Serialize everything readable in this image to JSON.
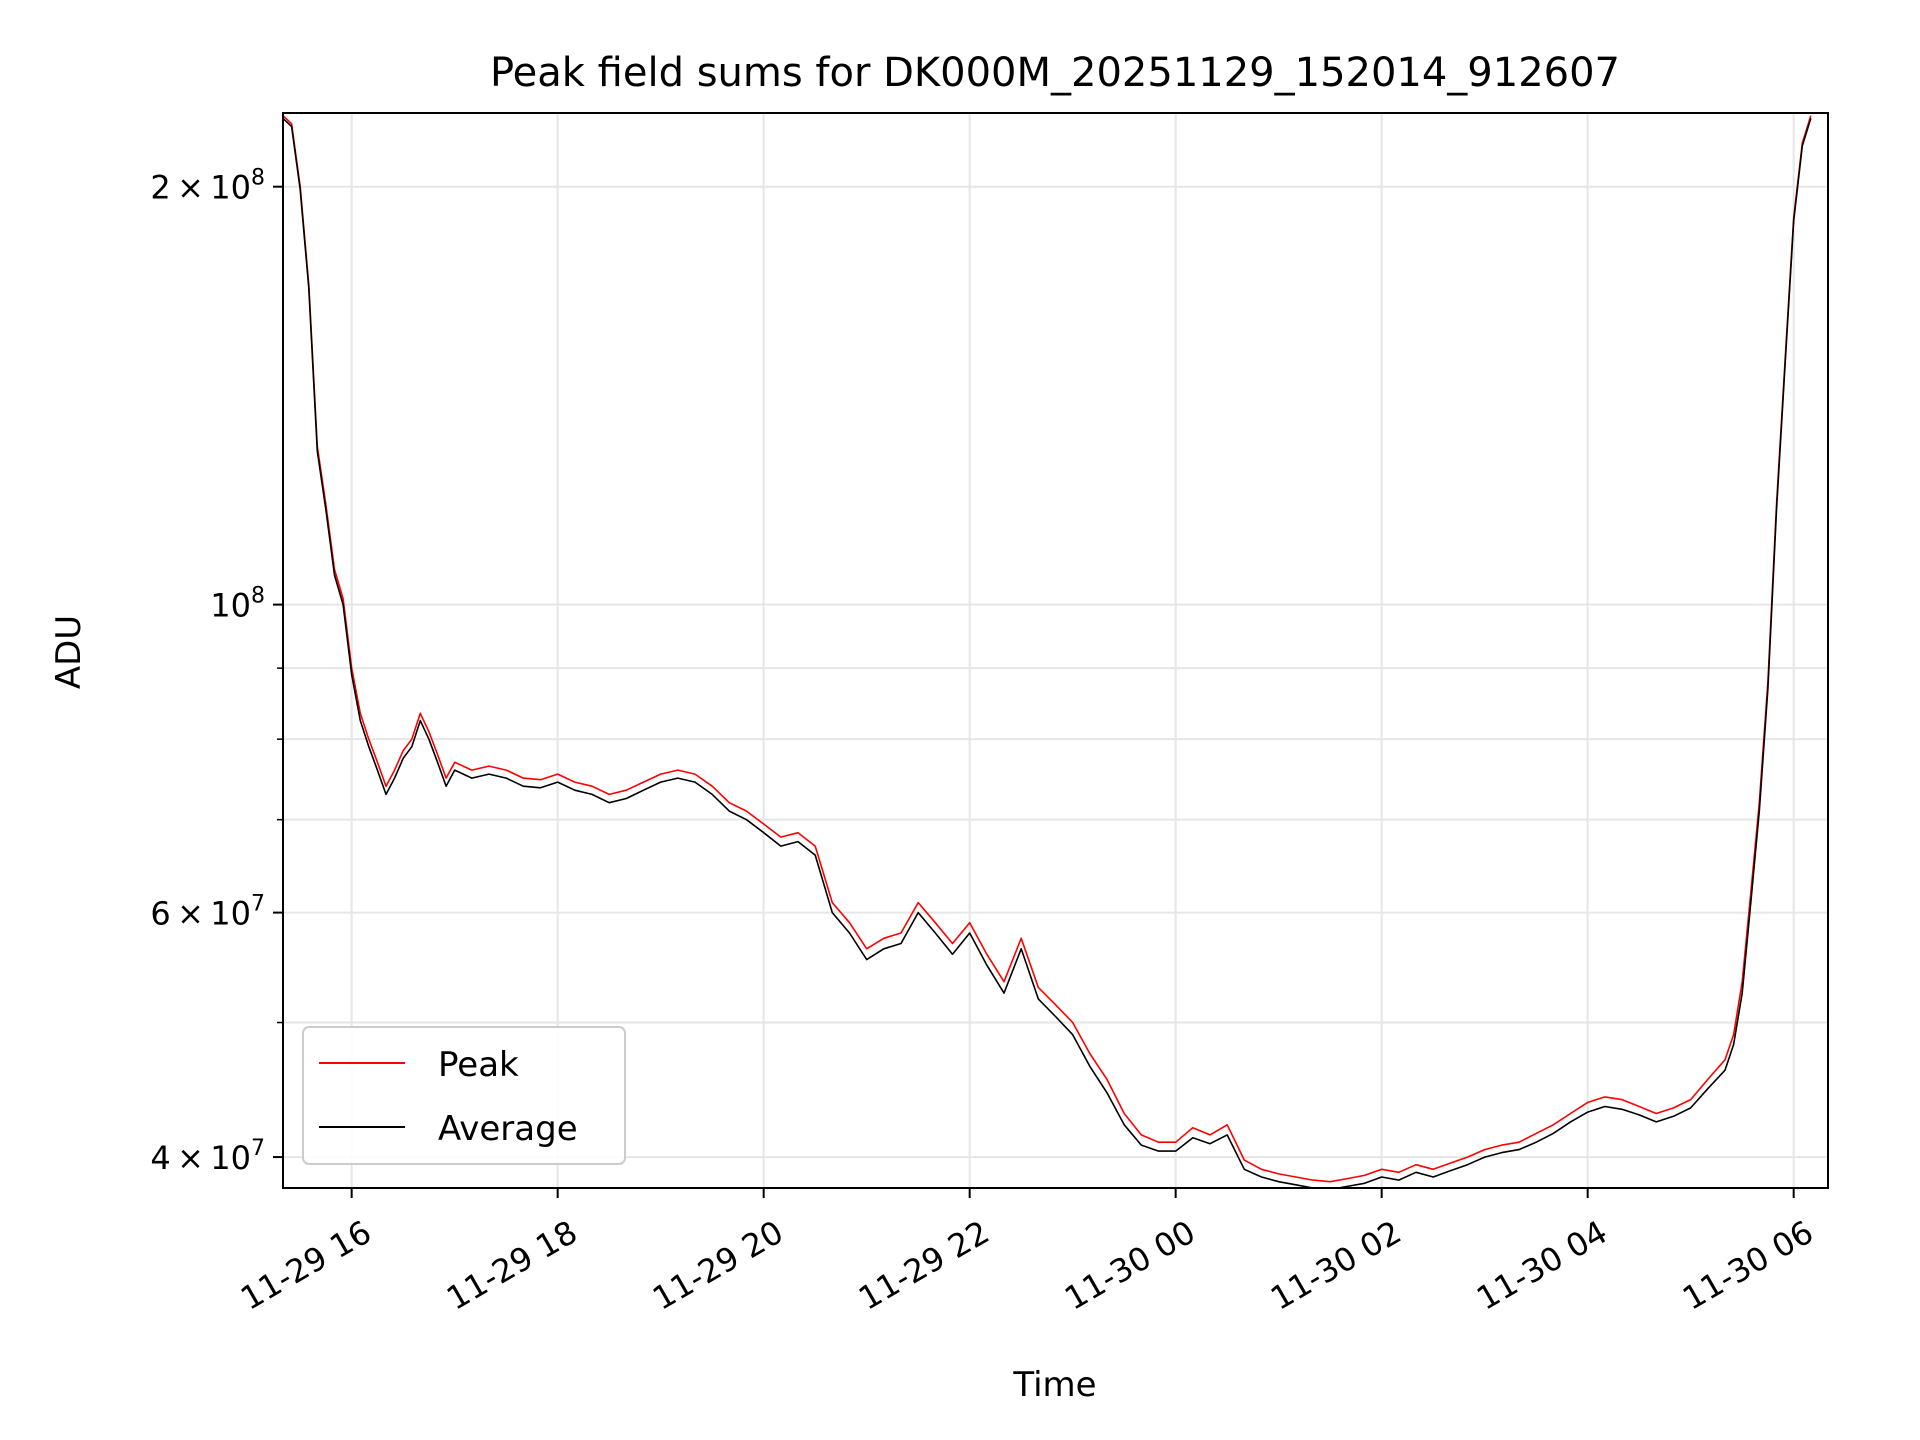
{
  "chart_data": {
    "type": "line",
    "title": "Peak field sums for DK000M_20251129_152014_912607",
    "xlabel": "Time",
    "ylabel": "ADU",
    "yscale": "log",
    "grid": true,
    "legend_position": "bottom-left",
    "xlim": [
      "2025-11-29 15:20",
      "2025-11-30 06:20"
    ],
    "ylim": [
      38000000,
      226000000
    ],
    "x_ticks": [
      {
        "value": "2025-11-29 16:00",
        "label": "11-29 16"
      },
      {
        "value": "2025-11-29 18:00",
        "label": "11-29 18"
      },
      {
        "value": "2025-11-29 20:00",
        "label": "11-29 20"
      },
      {
        "value": "2025-11-29 22:00",
        "label": "11-29 22"
      },
      {
        "value": "2025-11-30 00:00",
        "label": "11-30 00"
      },
      {
        "value": "2025-11-30 02:00",
        "label": "11-30 02"
      },
      {
        "value": "2025-11-30 04:00",
        "label": "11-30 04"
      },
      {
        "value": "2025-11-30 06:00",
        "label": "11-30 06"
      }
    ],
    "y_major_ticks": [
      {
        "value": 40000000,
        "mantissa": "4",
        "exponent": "7"
      },
      {
        "value": 60000000,
        "mantissa": "6",
        "exponent": "7"
      },
      {
        "value": 100000000,
        "mantissa": "",
        "exponent": "8"
      },
      {
        "value": 200000000,
        "mantissa": "2",
        "exponent": "8"
      }
    ],
    "y_minor_ticks": [
      50000000,
      70000000,
      80000000,
      90000000
    ],
    "series": [
      {
        "name": "Peak",
        "color": "#ff0000",
        "x": [
          "2025-11-29 15:20",
          "2025-11-29 15:25",
          "2025-11-29 15:30",
          "2025-11-29 15:35",
          "2025-11-29 15:40",
          "2025-11-29 15:45",
          "2025-11-29 15:50",
          "2025-11-29 15:55",
          "2025-11-29 16:00",
          "2025-11-29 16:05",
          "2025-11-29 16:10",
          "2025-11-29 16:15",
          "2025-11-29 16:20",
          "2025-11-29 16:25",
          "2025-11-29 16:30",
          "2025-11-29 16:35",
          "2025-11-29 16:40",
          "2025-11-29 16:45",
          "2025-11-29 16:50",
          "2025-11-29 16:55",
          "2025-11-29 17:00",
          "2025-11-29 17:10",
          "2025-11-29 17:20",
          "2025-11-29 17:30",
          "2025-11-29 17:40",
          "2025-11-29 17:50",
          "2025-11-29 18:00",
          "2025-11-29 18:10",
          "2025-11-29 18:20",
          "2025-11-29 18:30",
          "2025-11-29 18:40",
          "2025-11-29 18:50",
          "2025-11-29 19:00",
          "2025-11-29 19:10",
          "2025-11-29 19:20",
          "2025-11-29 19:30",
          "2025-11-29 19:40",
          "2025-11-29 19:50",
          "2025-11-29 20:00",
          "2025-11-29 20:10",
          "2025-11-29 20:20",
          "2025-11-29 20:30",
          "2025-11-29 20:40",
          "2025-11-29 20:50",
          "2025-11-29 21:00",
          "2025-11-29 21:10",
          "2025-11-29 21:20",
          "2025-11-29 21:30",
          "2025-11-29 21:40",
          "2025-11-29 21:50",
          "2025-11-29 22:00",
          "2025-11-29 22:10",
          "2025-11-29 22:20",
          "2025-11-29 22:30",
          "2025-11-29 22:40",
          "2025-11-29 22:50",
          "2025-11-29 23:00",
          "2025-11-29 23:10",
          "2025-11-29 23:20",
          "2025-11-29 23:30",
          "2025-11-29 23:40",
          "2025-11-29 23:50",
          "2025-11-30 00:00",
          "2025-11-30 00:10",
          "2025-11-30 00:20",
          "2025-11-30 00:30",
          "2025-11-30 00:40",
          "2025-11-30 00:50",
          "2025-11-30 01:00",
          "2025-11-30 01:10",
          "2025-11-30 01:20",
          "2025-11-30 01:30",
          "2025-11-30 01:40",
          "2025-11-30 01:50",
          "2025-11-30 02:00",
          "2025-11-30 02:10",
          "2025-11-30 02:20",
          "2025-11-30 02:30",
          "2025-11-30 02:40",
          "2025-11-30 02:50",
          "2025-11-30 03:00",
          "2025-11-30 03:10",
          "2025-11-30 03:20",
          "2025-11-30 03:30",
          "2025-11-30 03:40",
          "2025-11-30 03:50",
          "2025-11-30 04:00",
          "2025-11-30 04:10",
          "2025-11-30 04:20",
          "2025-11-30 04:30",
          "2025-11-30 04:40",
          "2025-11-30 04:50",
          "2025-11-30 05:00",
          "2025-11-30 05:10",
          "2025-11-30 05:20",
          "2025-11-30 05:25",
          "2025-11-30 05:30",
          "2025-11-30 05:35",
          "2025-11-30 05:40",
          "2025-11-30 05:45",
          "2025-11-30 05:50",
          "2025-11-30 05:55",
          "2025-11-30 06:00",
          "2025-11-30 06:05",
          "2025-11-30 06:10"
        ],
        "y": [
          225000000,
          222000000,
          200000000,
          170000000,
          130000000,
          118000000,
          106000000,
          101000000,
          90000000,
          83500000,
          80000000,
          77000000,
          74000000,
          76000000,
          78500000,
          80000000,
          83500000,
          81000000,
          78000000,
          75000000,
          77000000,
          76000000,
          76500000,
          76000000,
          75000000,
          74800000,
          75500000,
          74500000,
          74000000,
          73000000,
          73500000,
          74500000,
          75500000,
          76000000,
          75500000,
          74000000,
          72000000,
          71000000,
          69500000,
          68000000,
          68500000,
          67000000,
          61000000,
          59000000,
          56500000,
          57500000,
          58000000,
          61000000,
          59000000,
          57000000,
          59000000,
          56000000,
          53500000,
          57500000,
          53000000,
          51500000,
          50000000,
          47500000,
          45500000,
          43000000,
          41500000,
          41000000,
          41000000,
          42000000,
          41500000,
          42200000,
          39800000,
          39200000,
          38900000,
          38700000,
          38500000,
          38400000,
          38600000,
          38800000,
          39200000,
          39000000,
          39500000,
          39200000,
          39600000,
          40000000,
          40500000,
          40800000,
          41000000,
          41600000,
          42200000,
          43000000,
          43800000,
          44200000,
          44000000,
          43500000,
          43000000,
          43400000,
          44000000,
          45500000,
          47000000,
          49000000,
          53500000,
          62000000,
          72000000,
          88000000,
          118000000,
          150000000,
          190000000,
          215000000,
          225000000
        ]
      },
      {
        "name": "Average",
        "color": "#000000",
        "x": [
          "2025-11-29 15:20",
          "2025-11-29 15:25",
          "2025-11-29 15:30",
          "2025-11-29 15:35",
          "2025-11-29 15:40",
          "2025-11-29 15:45",
          "2025-11-29 15:50",
          "2025-11-29 15:55",
          "2025-11-29 16:00",
          "2025-11-29 16:05",
          "2025-11-29 16:10",
          "2025-11-29 16:15",
          "2025-11-29 16:20",
          "2025-11-29 16:25",
          "2025-11-29 16:30",
          "2025-11-29 16:35",
          "2025-11-29 16:40",
          "2025-11-29 16:45",
          "2025-11-29 16:50",
          "2025-11-29 16:55",
          "2025-11-29 17:00",
          "2025-11-29 17:10",
          "2025-11-29 17:20",
          "2025-11-29 17:30",
          "2025-11-29 17:40",
          "2025-11-29 17:50",
          "2025-11-29 18:00",
          "2025-11-29 18:10",
          "2025-11-29 18:20",
          "2025-11-29 18:30",
          "2025-11-29 18:40",
          "2025-11-29 18:50",
          "2025-11-29 19:00",
          "2025-11-29 19:10",
          "2025-11-29 19:20",
          "2025-11-29 19:30",
          "2025-11-29 19:40",
          "2025-11-29 19:50",
          "2025-11-29 20:00",
          "2025-11-29 20:10",
          "2025-11-29 20:20",
          "2025-11-29 20:30",
          "2025-11-29 20:40",
          "2025-11-29 20:50",
          "2025-11-29 21:00",
          "2025-11-29 21:10",
          "2025-11-29 21:20",
          "2025-11-29 21:30",
          "2025-11-29 21:40",
          "2025-11-29 21:50",
          "2025-11-29 22:00",
          "2025-11-29 22:10",
          "2025-11-29 22:20",
          "2025-11-29 22:30",
          "2025-11-29 22:40",
          "2025-11-29 22:50",
          "2025-11-29 23:00",
          "2025-11-29 23:10",
          "2025-11-29 23:20",
          "2025-11-29 23:30",
          "2025-11-29 23:40",
          "2025-11-29 23:50",
          "2025-11-30 00:00",
          "2025-11-30 00:10",
          "2025-11-30 00:20",
          "2025-11-30 00:30",
          "2025-11-30 00:40",
          "2025-11-30 00:50",
          "2025-11-30 01:00",
          "2025-11-30 01:10",
          "2025-11-30 01:20",
          "2025-11-30 01:30",
          "2025-11-30 01:40",
          "2025-11-30 01:50",
          "2025-11-30 02:00",
          "2025-11-30 02:10",
          "2025-11-30 02:20",
          "2025-11-30 02:30",
          "2025-11-30 02:40",
          "2025-11-30 02:50",
          "2025-11-30 03:00",
          "2025-11-30 03:10",
          "2025-11-30 03:20",
          "2025-11-30 03:30",
          "2025-11-30 03:40",
          "2025-11-30 03:50",
          "2025-11-30 04:00",
          "2025-11-30 04:10",
          "2025-11-30 04:20",
          "2025-11-30 04:30",
          "2025-11-30 04:40",
          "2025-11-30 04:50",
          "2025-11-30 05:00",
          "2025-11-30 05:10",
          "2025-11-30 05:20",
          "2025-11-30 05:25",
          "2025-11-30 05:30",
          "2025-11-30 05:35",
          "2025-11-30 05:40",
          "2025-11-30 05:45",
          "2025-11-30 05:50",
          "2025-11-30 05:55",
          "2025-11-30 06:00",
          "2025-11-30 06:05",
          "2025-11-30 06:10"
        ],
        "y": [
          224000000,
          221000000,
          199000000,
          169000000,
          129000000,
          117000000,
          105000000,
          100000000,
          89000000,
          82500000,
          79000000,
          76000000,
          73000000,
          75000000,
          77500000,
          79000000,
          82500000,
          80000000,
          77000000,
          74000000,
          76000000,
          75000000,
          75500000,
          75000000,
          74000000,
          73800000,
          74500000,
          73500000,
          73000000,
          72000000,
          72500000,
          73500000,
          74500000,
          75000000,
          74500000,
          73000000,
          71000000,
          70000000,
          68500000,
          67000000,
          67500000,
          66000000,
          60000000,
          58000000,
          55500000,
          56500000,
          57000000,
          60000000,
          58000000,
          56000000,
          58000000,
          55000000,
          52500000,
          56500000,
          52000000,
          50500000,
          49000000,
          46500000,
          44500000,
          42200000,
          40800000,
          40400000,
          40400000,
          41300000,
          40900000,
          41500000,
          39200000,
          38700000,
          38400000,
          38200000,
          38000000,
          37900000,
          38100000,
          38300000,
          38700000,
          38500000,
          39000000,
          38700000,
          39100000,
          39500000,
          40000000,
          40300000,
          40500000,
          41000000,
          41600000,
          42400000,
          43100000,
          43500000,
          43300000,
          42900000,
          42400000,
          42800000,
          43400000,
          44800000,
          46200000,
          48200000,
          52500000,
          61000000,
          71000000,
          87000000,
          117000000,
          149000000,
          189000000,
          214000000,
          224000000
        ]
      }
    ]
  }
}
